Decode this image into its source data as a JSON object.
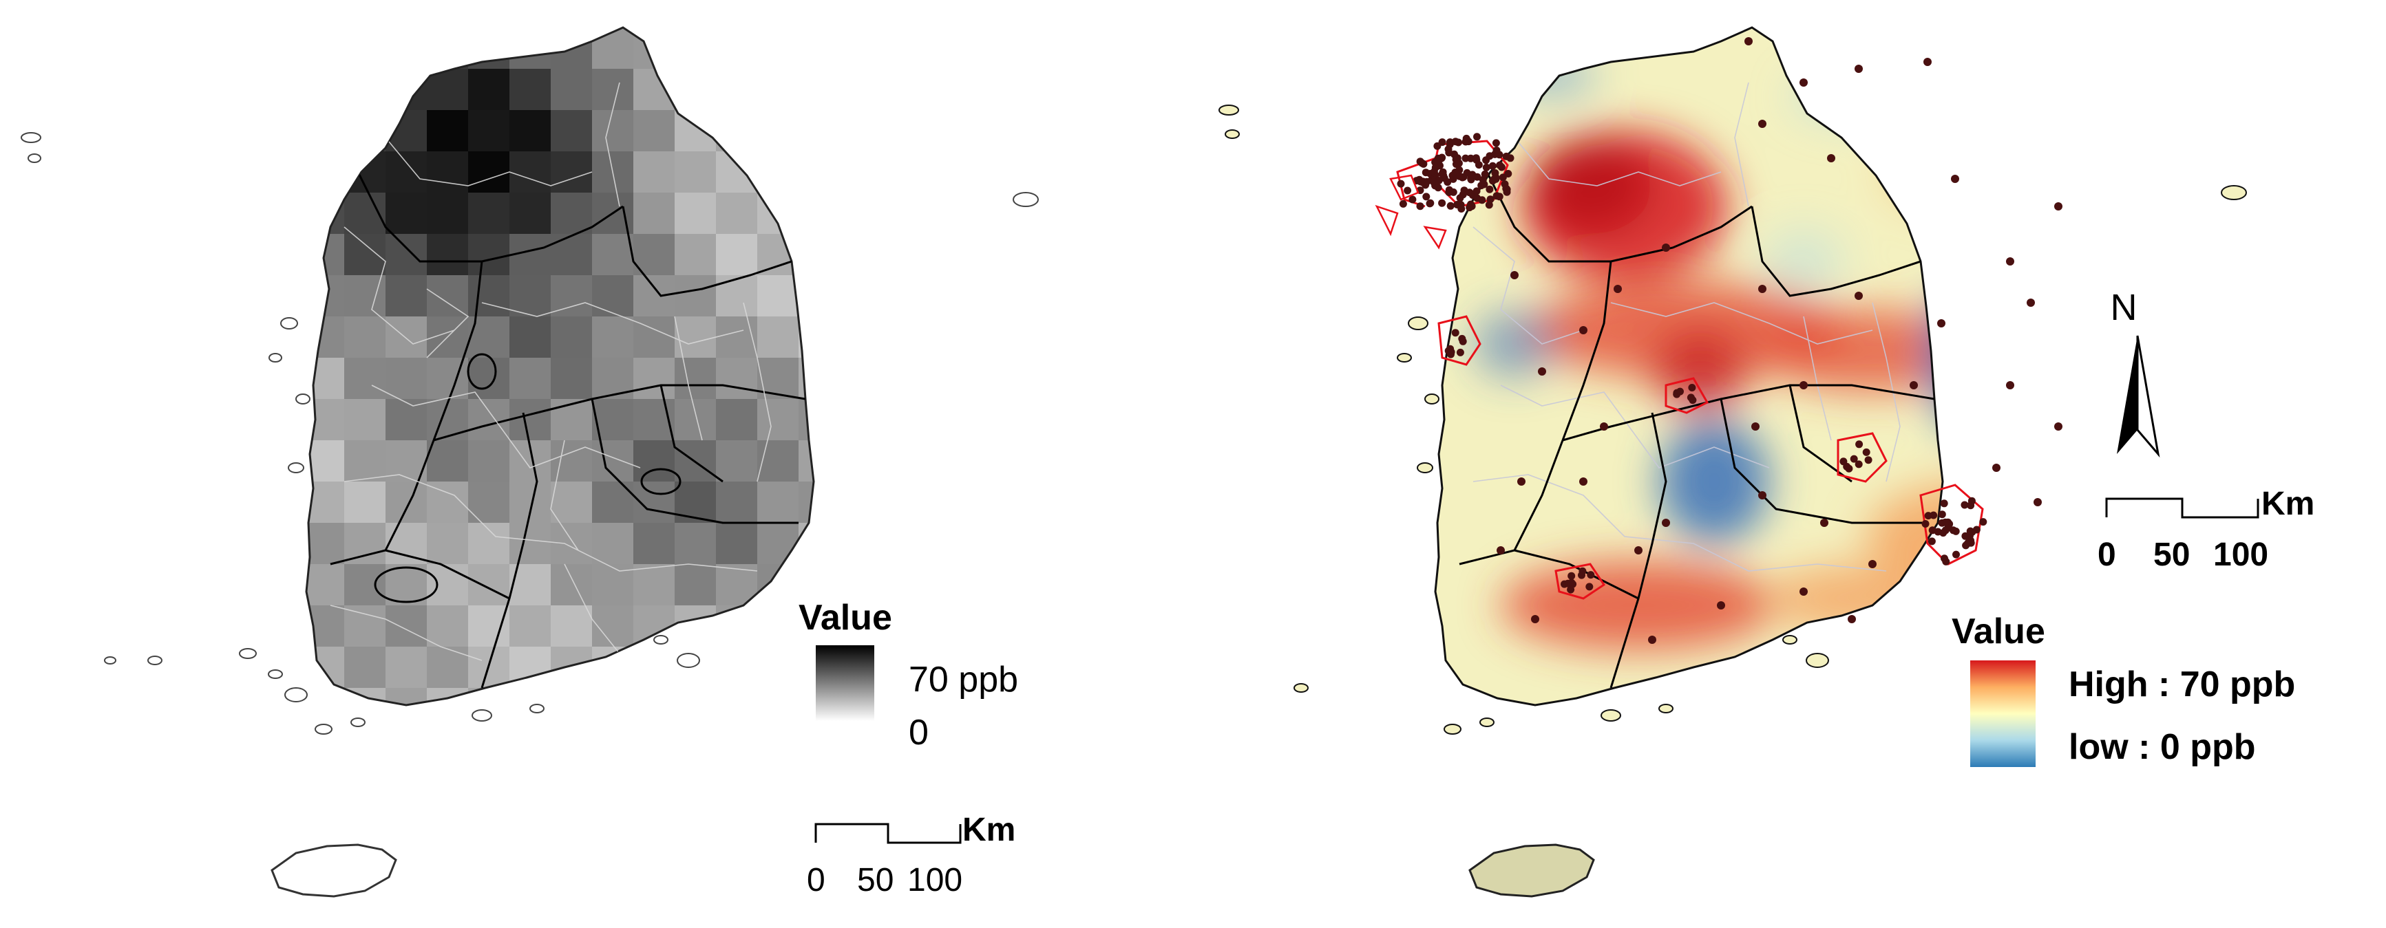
{
  "left_map": {
    "legend": {
      "title": "Value",
      "max_label": "70 ppb",
      "min_label": "0",
      "ramp_colors": [
        "#000000",
        "#ffffff"
      ]
    },
    "scale_bar": {
      "unit": "Km",
      "ticks": [
        "0",
        "50",
        "100"
      ]
    },
    "palette": {
      "grid_min": "#e0e0e0",
      "grid_max": "#080808",
      "province_border": "#000000",
      "district_border": "#d8d8d8"
    }
  },
  "right_map": {
    "north_label": "N",
    "legend": {
      "title": "Value",
      "high_label": "High : 70 ppb",
      "low_label": "low : 0 ppb",
      "ramp_colors": [
        "#d7191c",
        "#fdae61",
        "#ffffbf",
        "#abd9e9",
        "#2c7bb6"
      ]
    },
    "scale_bar": {
      "unit": "Km",
      "ticks": [
        "0",
        "50",
        "100"
      ]
    },
    "palette": {
      "base": "#f4f1c0",
      "hot": "#d7191c",
      "warm": "#f4a461",
      "cool": "#3a70b8",
      "station_marker": "#4a1010",
      "city_outline": "#e8101a",
      "province_border": "#000000"
    }
  }
}
